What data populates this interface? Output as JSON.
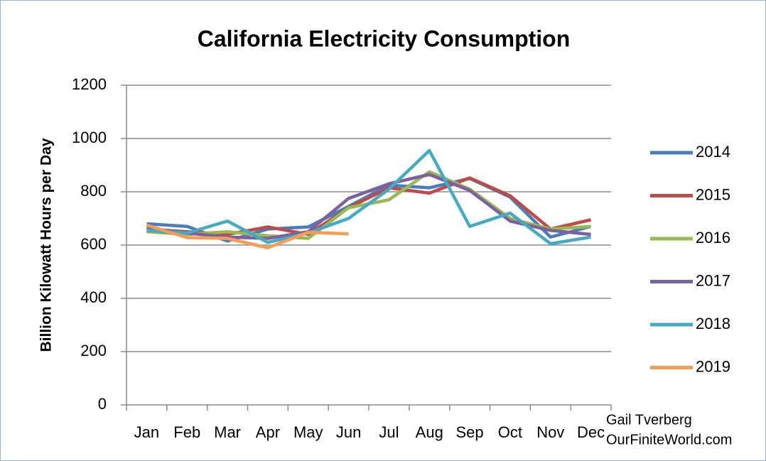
{
  "chart_data": {
    "type": "line",
    "title": "California Electricity Consumption",
    "y_label": "Billion Kilowatt Hours per Day",
    "categories": [
      "Jan",
      "Feb",
      "Mar",
      "Apr",
      "May",
      "Jun",
      "Jul",
      "Aug",
      "Sep",
      "Oct",
      "Nov",
      "Dec"
    ],
    "series": [
      {
        "name": "2014",
        "color": "#4a7ebb",
        "values": [
          680,
          670,
          615,
          660,
          668,
          745,
          825,
          815,
          850,
          780,
          630,
          670
        ]
      },
      {
        "name": "2015",
        "color": "#be4b48",
        "values": [
          660,
          650,
          640,
          668,
          640,
          740,
          815,
          795,
          852,
          785,
          660,
          695
        ]
      },
      {
        "name": "2016",
        "color": "#98b954",
        "values": [
          650,
          640,
          650,
          635,
          625,
          740,
          770,
          875,
          810,
          700,
          660,
          670
        ]
      },
      {
        "name": "2017",
        "color": "#7d60a0",
        "values": [
          665,
          645,
          630,
          625,
          650,
          775,
          830,
          865,
          805,
          690,
          655,
          640
        ]
      },
      {
        "name": "2018",
        "color": "#46aac5",
        "values": [
          655,
          645,
          690,
          610,
          645,
          700,
          810,
          955,
          670,
          720,
          605,
          630
        ]
      },
      {
        "name": "2019",
        "color": "#f59d56",
        "values": [
          675,
          628,
          625,
          590,
          648,
          642,
          null,
          null,
          null,
          null,
          null,
          null
        ]
      }
    ],
    "ylim": [
      0,
      1200
    ],
    "yticks": [
      0,
      200,
      400,
      600,
      800,
      1000,
      1200
    ],
    "grid": true,
    "legend": "right",
    "annotation": [
      "Gail Tverberg",
      "OurFiniteWorld.com"
    ]
  }
}
